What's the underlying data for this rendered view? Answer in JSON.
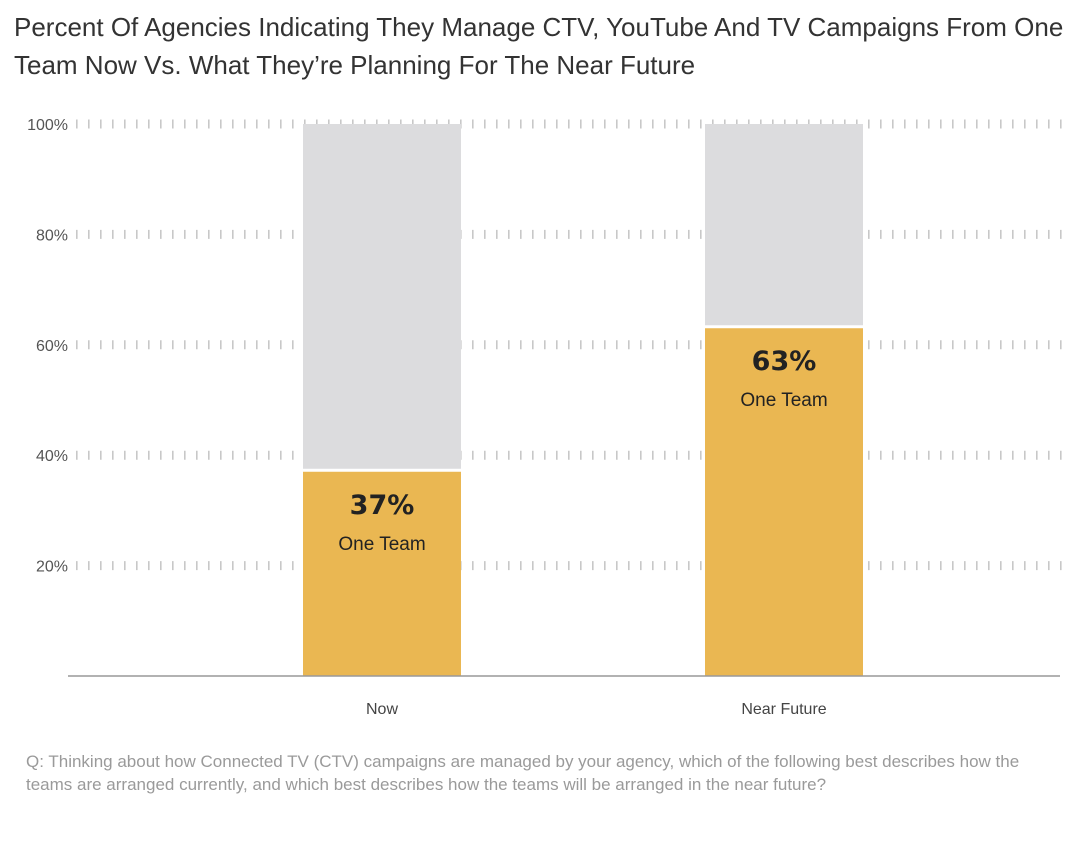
{
  "chart_data": {
    "type": "bar",
    "stacked": true,
    "title": "Percent Of Agencies Indicating They Manage CTV, YouTube And TV Campaigns From One Team Now Vs. What They’re Planning For The Near Future",
    "categories": [
      "Now",
      "Near Future"
    ],
    "series": [
      {
        "name": "One Team",
        "values": [
          37,
          63
        ],
        "labels": [
          "37%",
          "63%"
        ],
        "color": "#eab752"
      },
      {
        "values": [
          63,
          37
        ],
        "color": "#dcdcde"
      }
    ],
    "y_ticks": [
      20,
      40,
      60,
      80,
      100
    ],
    "y_tick_labels": [
      "20%",
      "40%",
      "60%",
      "80%",
      "100%"
    ],
    "ylim": [
      0,
      100
    ],
    "grid": "dotted horizontal",
    "axis_color": "#999999"
  },
  "footnote": "Q: Thinking about how Connected TV (CTV) campaigns are managed by your agency, which of the following best describes how the teams are arranged currently, and which best describes how the teams will be arranged in the near future?"
}
